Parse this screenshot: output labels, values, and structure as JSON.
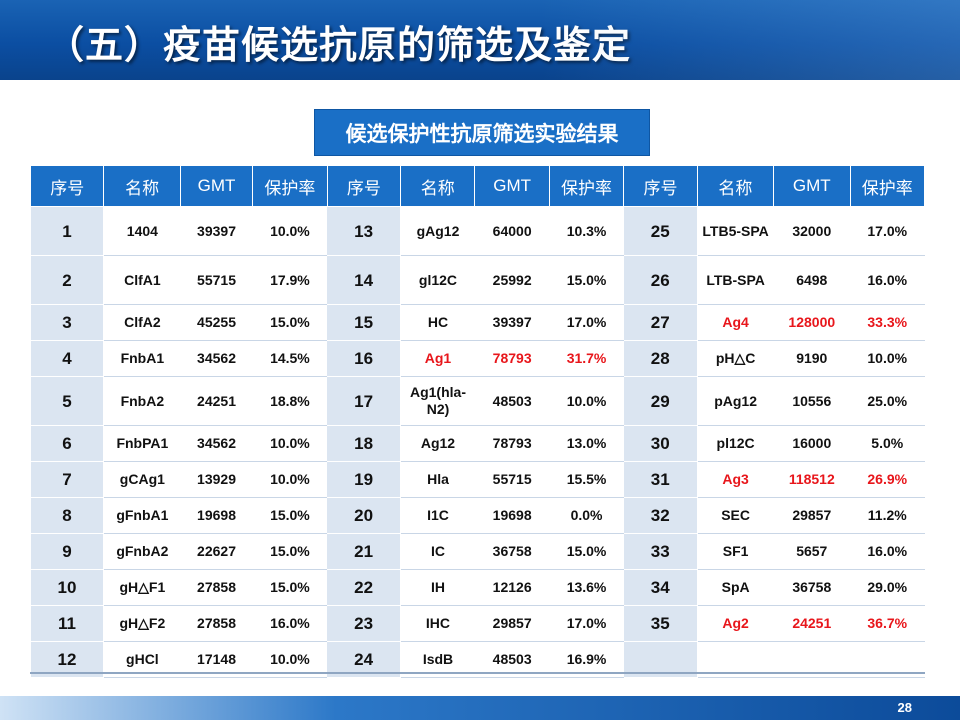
{
  "slide": {
    "title": "（五）疫苗候选抗原的筛选及鉴定",
    "subtitle": "候选保护性抗原筛选实验结果",
    "page_number": "28"
  },
  "table": {
    "headers": [
      "序号",
      "名称",
      "GMT",
      "保护率",
      "序号",
      "名称",
      "GMT",
      "保护率",
      "序号",
      "名称",
      "GMT",
      "保护率"
    ],
    "rows": [
      {
        "h": "tall",
        "cells": [
          "1",
          "1404",
          "39397",
          "10.0%",
          "13",
          "gAg12",
          "64000",
          "10.3%",
          "25",
          "LTB5-SPA",
          "32000",
          "17.0%"
        ]
      },
      {
        "h": "tall",
        "cells": [
          "2",
          "ClfA1",
          "55715",
          "17.9%",
          "14",
          "gl12C",
          "25992",
          "15.0%",
          "26",
          "LTB-SPA",
          "6498",
          "16.0%"
        ]
      },
      {
        "h": "short",
        "cells": [
          "3",
          "ClfA2",
          "45255",
          "15.0%",
          "15",
          "HC",
          "39397",
          "17.0%",
          "27",
          "Ag4",
          "128000",
          "33.3%"
        ]
      },
      {
        "h": "short",
        "cells": [
          "4",
          "FnbA1",
          "34562",
          "14.5%",
          "16",
          "Ag1",
          "78793",
          "31.7%",
          "28",
          "pH△C",
          "9190",
          "10.0%"
        ]
      },
      {
        "h": "tall",
        "cells": [
          "5",
          "FnbA2",
          "24251",
          "18.8%",
          "17",
          "Ag1(hla-N2)",
          "48503",
          "10.0%",
          "29",
          "pAg12",
          "10556",
          "25.0%"
        ]
      },
      {
        "h": "short",
        "cells": [
          "6",
          "FnbPA1",
          "34562",
          "10.0%",
          "18",
          "Ag12",
          "78793",
          "13.0%",
          "30",
          "pl12C",
          "16000",
          "5.0%"
        ]
      },
      {
        "h": "short",
        "cells": [
          "7",
          "gCAg1",
          "13929",
          "10.0%",
          "19",
          "Hla",
          "55715",
          "15.5%",
          "31",
          "Ag3",
          "118512",
          "26.9%"
        ]
      },
      {
        "h": "short",
        "cells": [
          "8",
          "gFnbA1",
          "19698",
          "15.0%",
          "20",
          "I1C",
          "19698",
          "0.0%",
          "32",
          "SEC",
          "29857",
          "11.2%"
        ]
      },
      {
        "h": "short",
        "cells": [
          "9",
          "gFnbA2",
          "22627",
          "15.0%",
          "21",
          "IC",
          "36758",
          "15.0%",
          "33",
          "SF1",
          "5657",
          "16.0%"
        ]
      },
      {
        "h": "short",
        "cells": [
          "10",
          "gH△F1",
          "27858",
          "15.0%",
          "22",
          "IH",
          "12126",
          "13.6%",
          "34",
          "SpA",
          "36758",
          "29.0%"
        ]
      },
      {
        "h": "short",
        "cells": [
          "11",
          "gH△F2",
          "27858",
          "16.0%",
          "23",
          "IHC",
          "29857",
          "17.0%",
          "35",
          "Ag2",
          "24251",
          "36.7%"
        ]
      },
      {
        "h": "short",
        "cells": [
          "12",
          "gHCl",
          "17148",
          "10.0%",
          "24",
          "IsdB",
          "48503",
          "16.9%",
          "",
          "",
          "",
          ""
        ]
      }
    ],
    "highlight_color": "#e8161b",
    "highlighted": [
      [
        2,
        9
      ],
      [
        2,
        10
      ],
      [
        2,
        11
      ],
      [
        3,
        5
      ],
      [
        3,
        6
      ],
      [
        3,
        7
      ],
      [
        6,
        9
      ],
      [
        6,
        10
      ],
      [
        6,
        11
      ],
      [
        10,
        9
      ],
      [
        10,
        10
      ],
      [
        10,
        11
      ]
    ]
  },
  "colors": {
    "header_blue": "#1a6fc6",
    "index_cell_bg": "#dbe5f1"
  }
}
